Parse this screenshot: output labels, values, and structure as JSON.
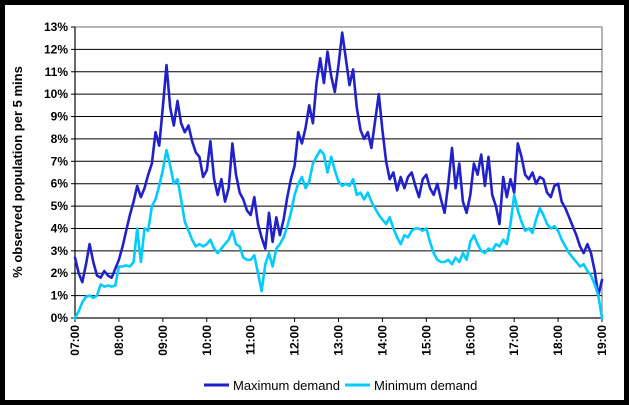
{
  "chart_data": {
    "type": "line",
    "title": "",
    "xlabel": "",
    "ylabel": "% observed population per 5 mins",
    "ylim": [
      0,
      13
    ],
    "grid": "horizontal",
    "legend_position": "bottom",
    "x_start": "07:00",
    "x_end": "19:00",
    "x_interval_minutes": 5,
    "y_tick_labels": [
      "0%",
      "1%",
      "2%",
      "3%",
      "4%",
      "5%",
      "6%",
      "7%",
      "8%",
      "9%",
      "10%",
      "11%",
      "12%",
      "13%"
    ],
    "x_tick_labels": [
      "07:00",
      "08:00",
      "09:00",
      "10:00",
      "11:00",
      "12:00",
      "13:00",
      "14:00",
      "15:00",
      "16:00",
      "17:00",
      "18:00",
      "19:00"
    ],
    "series": [
      {
        "name": "Maximum demand",
        "color": "#2121CC",
        "values": [
          2.7,
          2.0,
          1.6,
          2.4,
          3.3,
          2.5,
          1.9,
          1.8,
          2.1,
          1.9,
          1.8,
          2.2,
          2.6,
          3.2,
          3.9,
          4.6,
          5.2,
          5.9,
          5.4,
          5.8,
          6.4,
          6.9,
          8.3,
          7.7,
          9.4,
          11.3,
          9.4,
          8.6,
          9.7,
          8.7,
          8.3,
          8.6,
          7.9,
          7.4,
          7.2,
          6.3,
          6.6,
          7.9,
          6.2,
          5.5,
          6.2,
          5.2,
          5.8,
          7.8,
          6.4,
          5.6,
          5.3,
          4.8,
          4.6,
          5.4,
          4.2,
          3.6,
          3.1,
          4.7,
          3.4,
          4.5,
          3.7,
          4.4,
          5.4,
          6.2,
          6.8,
          8.3,
          7.8,
          8.5,
          9.5,
          8.7,
          10.5,
          11.6,
          10.5,
          11.9,
          10.8,
          10.1,
          11.3,
          12.75,
          11.6,
          10.4,
          11.1,
          9.4,
          8.4,
          8.0,
          8.3,
          7.6,
          8.8,
          10.0,
          8.4,
          7.0,
          6.2,
          6.5,
          5.7,
          6.3,
          5.8,
          6.3,
          6.5,
          5.9,
          5.4,
          6.2,
          6.4,
          5.8,
          5.5,
          6.0,
          5.3,
          4.7,
          6.0,
          7.6,
          5.8,
          6.9,
          5.2,
          4.7,
          5.5,
          6.9,
          6.4,
          7.3,
          5.9,
          7.2,
          5.5,
          5.0,
          4.2,
          6.3,
          5.4,
          6.2,
          5.6,
          7.8,
          7.2,
          6.4,
          6.2,
          6.5,
          6.0,
          6.3,
          6.2,
          5.6,
          5.4,
          5.9,
          6.0,
          5.2,
          4.9,
          4.5,
          4.1,
          3.7,
          3.2,
          2.9,
          3.3,
          2.9,
          2.1,
          1.0,
          1.7
        ]
      },
      {
        "name": "Minimum demand",
        "color": "#00CCFF",
        "values": [
          0.0,
          0.3,
          0.7,
          0.95,
          1.0,
          0.9,
          1.0,
          1.5,
          1.4,
          1.45,
          1.4,
          1.45,
          2.3,
          2.3,
          2.35,
          2.3,
          2.5,
          4.0,
          2.5,
          4.0,
          3.9,
          5.0,
          5.3,
          5.9,
          6.6,
          7.5,
          6.8,
          6.0,
          6.2,
          5.3,
          4.3,
          3.9,
          3.5,
          3.2,
          3.3,
          3.2,
          3.3,
          3.5,
          3.1,
          2.9,
          3.1,
          3.3,
          3.5,
          3.9,
          3.3,
          3.2,
          2.7,
          2.6,
          2.6,
          2.8,
          2.0,
          1.2,
          2.4,
          2.9,
          2.3,
          3.1,
          3.3,
          3.6,
          4.1,
          4.7,
          5.5,
          6.0,
          6.3,
          5.8,
          6.1,
          6.9,
          7.2,
          7.5,
          7.3,
          6.5,
          7.2,
          6.6,
          6.1,
          5.9,
          6.0,
          5.9,
          6.2,
          5.5,
          5.6,
          5.3,
          5.6,
          5.2,
          4.9,
          4.6,
          4.4,
          4.2,
          4.5,
          4.0,
          3.6,
          3.3,
          3.7,
          3.6,
          3.9,
          4.0,
          4.0,
          3.9,
          4.0,
          3.4,
          2.9,
          2.6,
          2.5,
          2.5,
          2.6,
          2.4,
          2.7,
          2.5,
          2.9,
          2.6,
          3.4,
          3.7,
          3.3,
          3.0,
          2.9,
          3.1,
          3.0,
          3.3,
          3.2,
          3.5,
          3.3,
          4.2,
          5.5,
          4.8,
          4.3,
          3.9,
          4.0,
          3.8,
          4.4,
          4.9,
          4.6,
          4.2,
          4.0,
          4.1,
          3.9,
          3.5,
          3.2,
          2.9,
          2.7,
          2.5,
          2.3,
          2.4,
          2.1,
          1.9,
          1.5,
          1.0,
          0.0
        ]
      }
    ]
  },
  "axis": {
    "y_title": "% observed population per 5 mins"
  },
  "legend": {
    "max_label": "Maximum demand",
    "min_label": "Minimum demand"
  },
  "colors": {
    "max_line": "#2121CC",
    "min_line": "#00CCFF",
    "gridline": "#000000",
    "plot_border": "#969696",
    "frame": "#000000",
    "background": "#FFFFFF"
  }
}
